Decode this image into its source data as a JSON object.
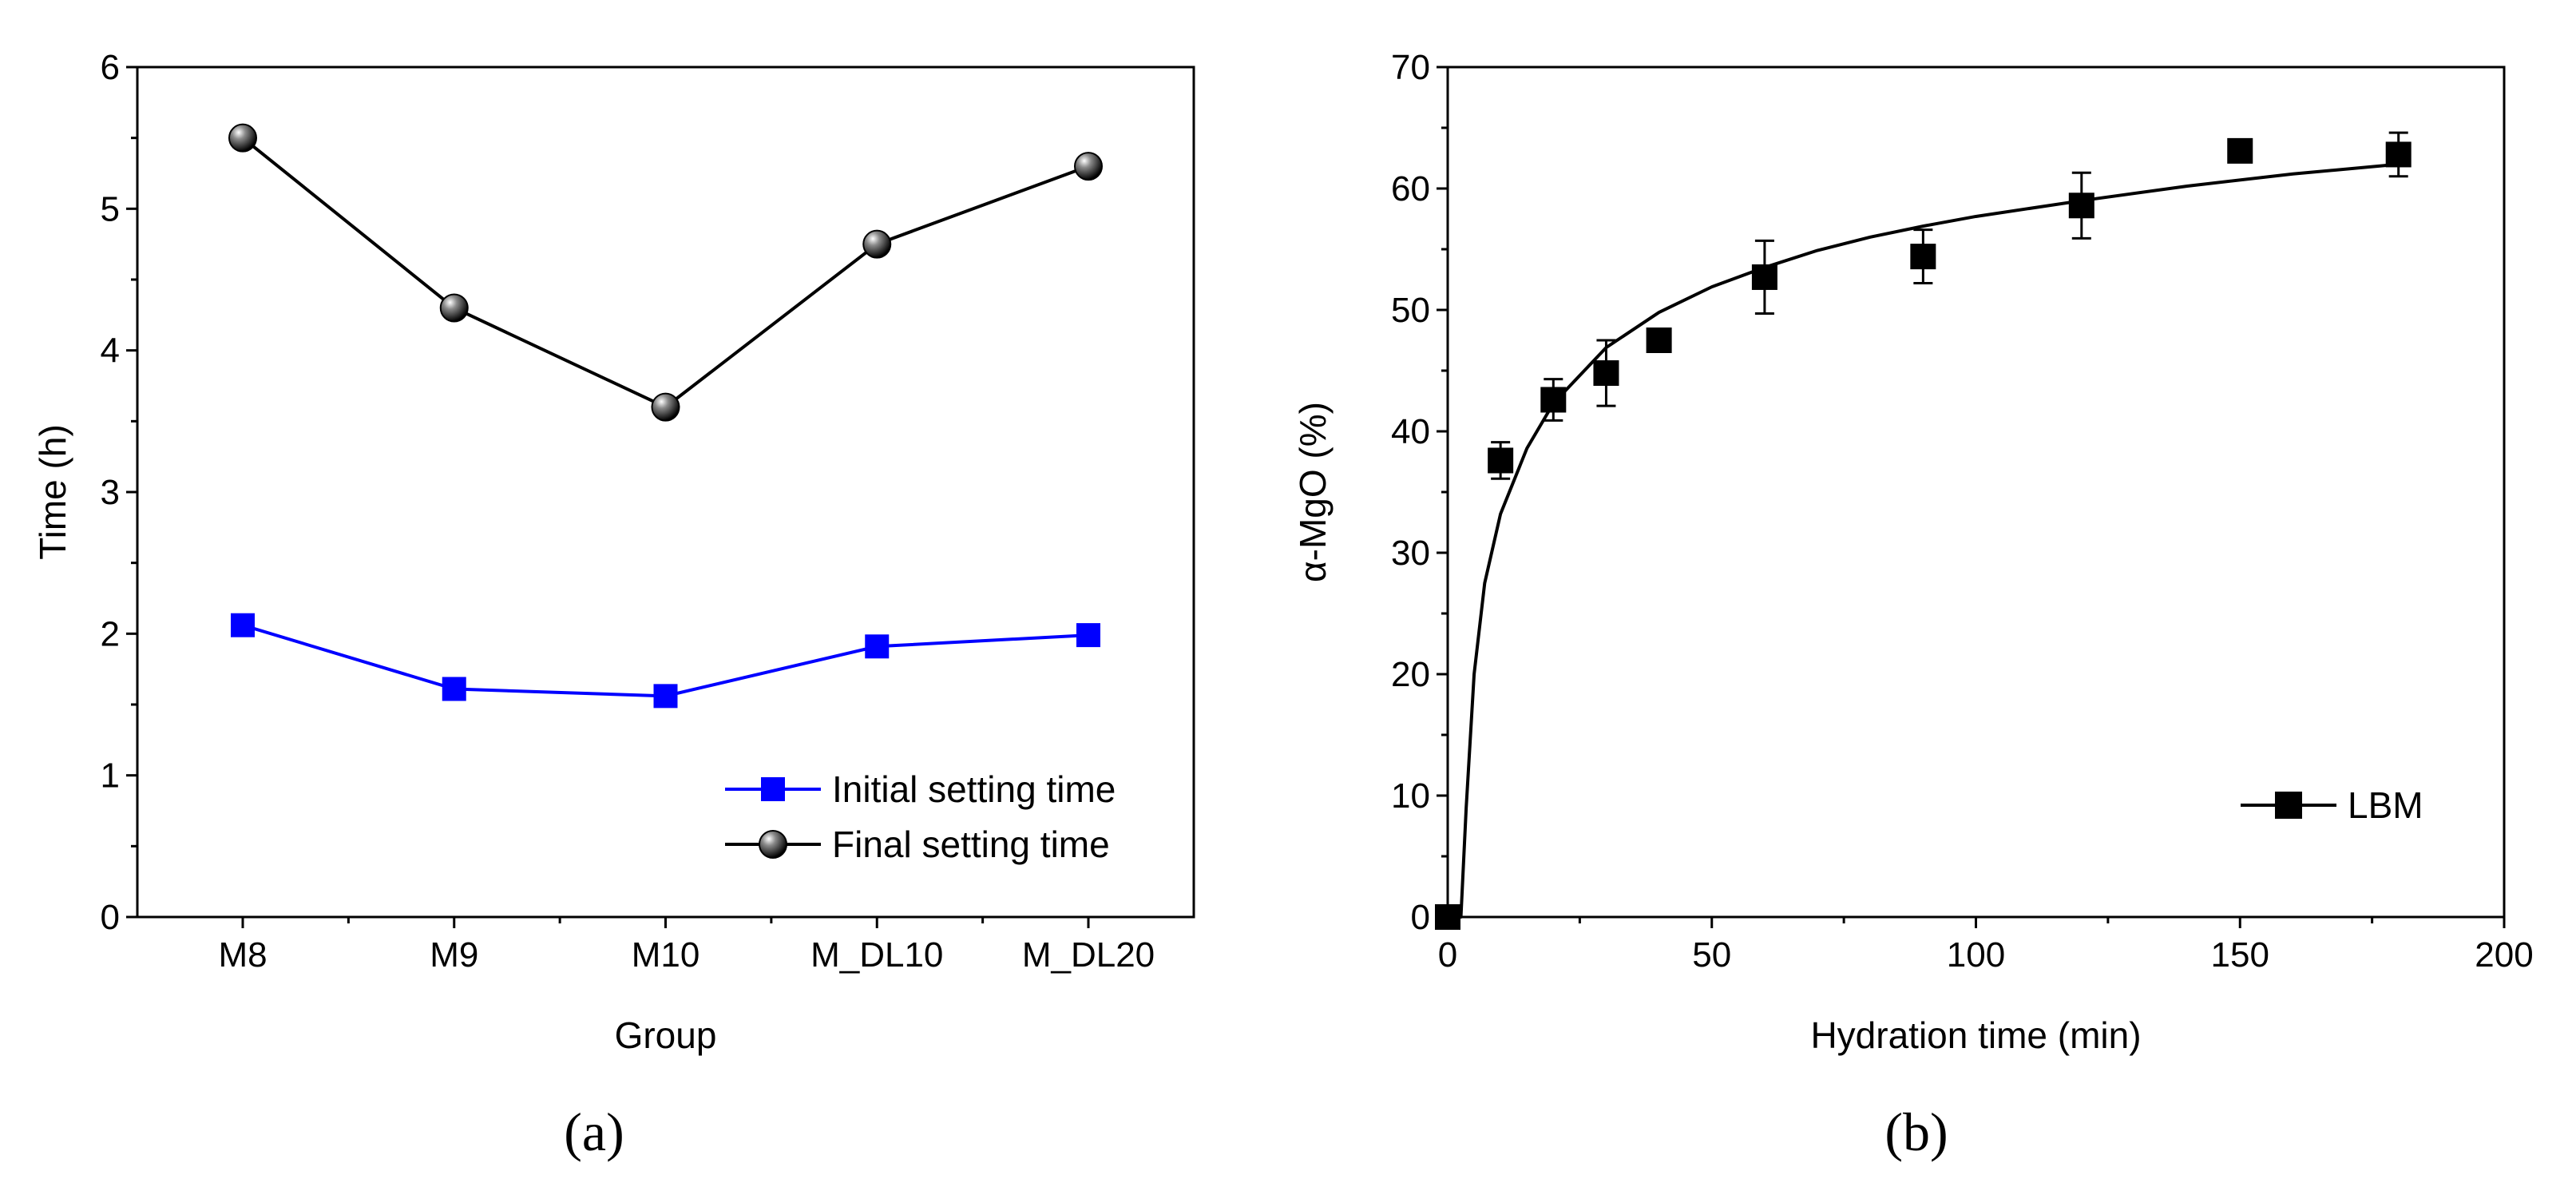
{
  "chart_data": [
    {
      "type": "line",
      "panel_label": "(a)",
      "categories": [
        "M8",
        "M9",
        "M10",
        "M_DL10",
        "M_DL20"
      ],
      "xlabel": "Group",
      "ylabel": "Time (h)",
      "ylim": [
        0,
        6
      ],
      "yticks": [
        "0",
        "1",
        "2",
        "3",
        "4",
        "5",
        "6"
      ],
      "legend_position": "bottom-right",
      "series": [
        {
          "name": "Initial setting time",
          "color": "#0000ff",
          "marker": "square",
          "values": [
            2.06,
            1.61,
            1.56,
            1.91,
            1.99
          ]
        },
        {
          "name": "Final setting time",
          "color": "#000000",
          "marker": "sphere",
          "values": [
            5.5,
            4.3,
            3.6,
            4.75,
            5.3
          ]
        }
      ]
    },
    {
      "type": "scatter",
      "panel_label": "(b)",
      "xlabel": "Hydration time (min)",
      "ylabel": "α-MgO (%)",
      "xlim": [
        0,
        200
      ],
      "ylim": [
        0,
        70
      ],
      "xticks": [
        "0",
        "50",
        "100",
        "150",
        "200"
      ],
      "yticks": [
        "0",
        "10",
        "20",
        "30",
        "40",
        "50",
        "60",
        "70"
      ],
      "legend_position": "bottom-right",
      "series": [
        {
          "name": "LBM",
          "color": "#000000",
          "marker": "square",
          "x": [
            0,
            10,
            20,
            30,
            40,
            60,
            90,
            120,
            150,
            180
          ],
          "y": [
            0,
            37.6,
            42.6,
            44.8,
            47.5,
            52.7,
            54.4,
            58.6,
            63.1,
            62.8
          ],
          "error": [
            0,
            1.5,
            1.7,
            2.7,
            0,
            3.0,
            2.2,
            2.7,
            0,
            1.8
          ]
        }
      ],
      "fit_curve": {
        "x": [
          0,
          2.5,
          3.5,
          5,
          7,
          10,
          15,
          20,
          30,
          40,
          50,
          60,
          70,
          80,
          90,
          100,
          120,
          140,
          160,
          180
        ],
        "y": [
          0,
          0,
          9,
          20,
          27.5,
          33.2,
          38.6,
          42.3,
          46.9,
          49.8,
          51.9,
          53.5,
          54.9,
          56.0,
          56.9,
          57.7,
          59.0,
          60.2,
          61.2,
          62.0
        ]
      }
    }
  ]
}
